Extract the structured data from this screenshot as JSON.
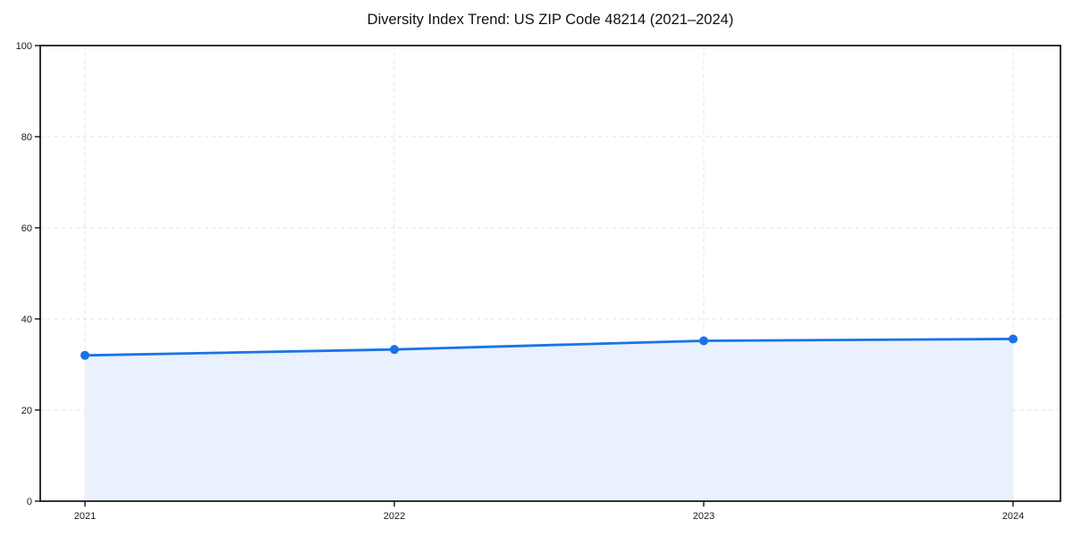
{
  "page": {
    "title": "Diversity Index Trend: US ZIP Code 48214 (2021–2024)"
  },
  "chart_data": {
    "type": "line",
    "title": "Diversity Index Trend: US ZIP Code 48214 (2021–2024)",
    "categories": [
      "2021",
      "2022",
      "2023",
      "2024"
    ],
    "series": [
      {
        "name": "Diversity Index",
        "values": [
          32.0,
          33.3,
          35.2,
          35.6
        ]
      }
    ],
    "xlabel": "",
    "ylabel": "",
    "ylim": [
      0,
      100
    ],
    "yticks": [
      0,
      20,
      40,
      60,
      80,
      100
    ],
    "grid": "dashed",
    "legend_position": "none",
    "area_fill": true,
    "marker": "circle",
    "colors": {
      "line": "#1a73e8",
      "marker": "#1a73e8",
      "area": "#e8f1fd",
      "grid": "#e3e3e3",
      "axis": "#000000",
      "tick_text": "#1a1a1a"
    }
  }
}
